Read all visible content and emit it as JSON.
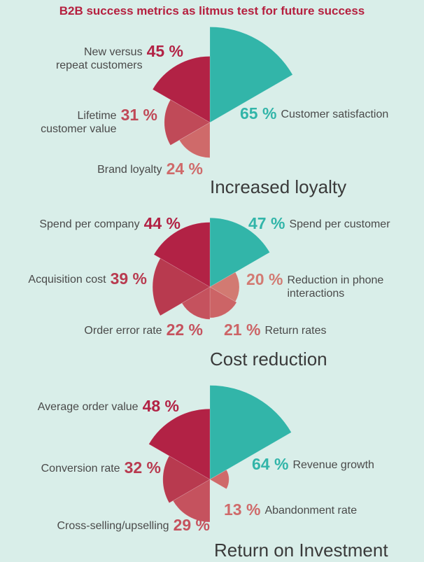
{
  "title": "B2B success metrics as litmus test for future success",
  "colors": {
    "background": "#d9eee9",
    "teal": "#32b5a9",
    "title": "#b5203f"
  },
  "chart_data": [
    {
      "type": "polar-area",
      "title": "Increased loyalty",
      "items": [
        {
          "label": "Customer satisfaction",
          "value": 65,
          "display": "65 %",
          "color": "#32b5a9",
          "start": 0
        },
        {
          "label": "New versus repeat customers",
          "value": 45,
          "display": "45 %",
          "color": "#b22245",
          "start": 300
        },
        {
          "label": "Lifetime customer value",
          "value": 31,
          "display": "31 %",
          "color": "#c04a58",
          "start": 240
        },
        {
          "label": "Brand loyalty",
          "value": 24,
          "display": "24 %",
          "color": "#cf6a6a",
          "start": 180
        }
      ]
    },
    {
      "type": "polar-area",
      "title": "Cost reduction",
      "items": [
        {
          "label": "Spend per customer",
          "value": 47,
          "display": "47 %",
          "color": "#32b5a9",
          "start": 0
        },
        {
          "label": "Reduction in phone interactions",
          "value": 20,
          "display": "20 %",
          "color": "#d27a72",
          "start": 60
        },
        {
          "label": "Return rates",
          "value": 21,
          "display": "21 %",
          "color": "#cc6466",
          "start": 120
        },
        {
          "label": "Order error rate",
          "value": 22,
          "display": "22 %",
          "color": "#c5525e",
          "start": 180
        },
        {
          "label": "Acquisition cost",
          "value": 39,
          "display": "39 %",
          "color": "#b83a4f",
          "start": 240
        },
        {
          "label": "Spend per company",
          "value": 44,
          "display": "44 %",
          "color": "#b22245",
          "start": 300
        }
      ]
    },
    {
      "type": "polar-area",
      "title": "Return on Investment",
      "items": [
        {
          "label": "Revenue growth",
          "value": 64,
          "display": "64 %",
          "color": "#32b5a9",
          "start": 0
        },
        {
          "label": "Abandonment rate",
          "value": 13,
          "display": "13 %",
          "color": "#cf6a6a",
          "start": 60
        },
        {
          "label": "Cross-selling/upselling",
          "value": 29,
          "display": "29 %",
          "color": "#c5525e",
          "start": 180
        },
        {
          "label": "Conversion rate",
          "value": 32,
          "display": "32 %",
          "color": "#b83a4f",
          "start": 240
        },
        {
          "label": "Average order value",
          "value": 48,
          "display": "48 %",
          "color": "#b22245",
          "start": 300
        }
      ]
    }
  ]
}
